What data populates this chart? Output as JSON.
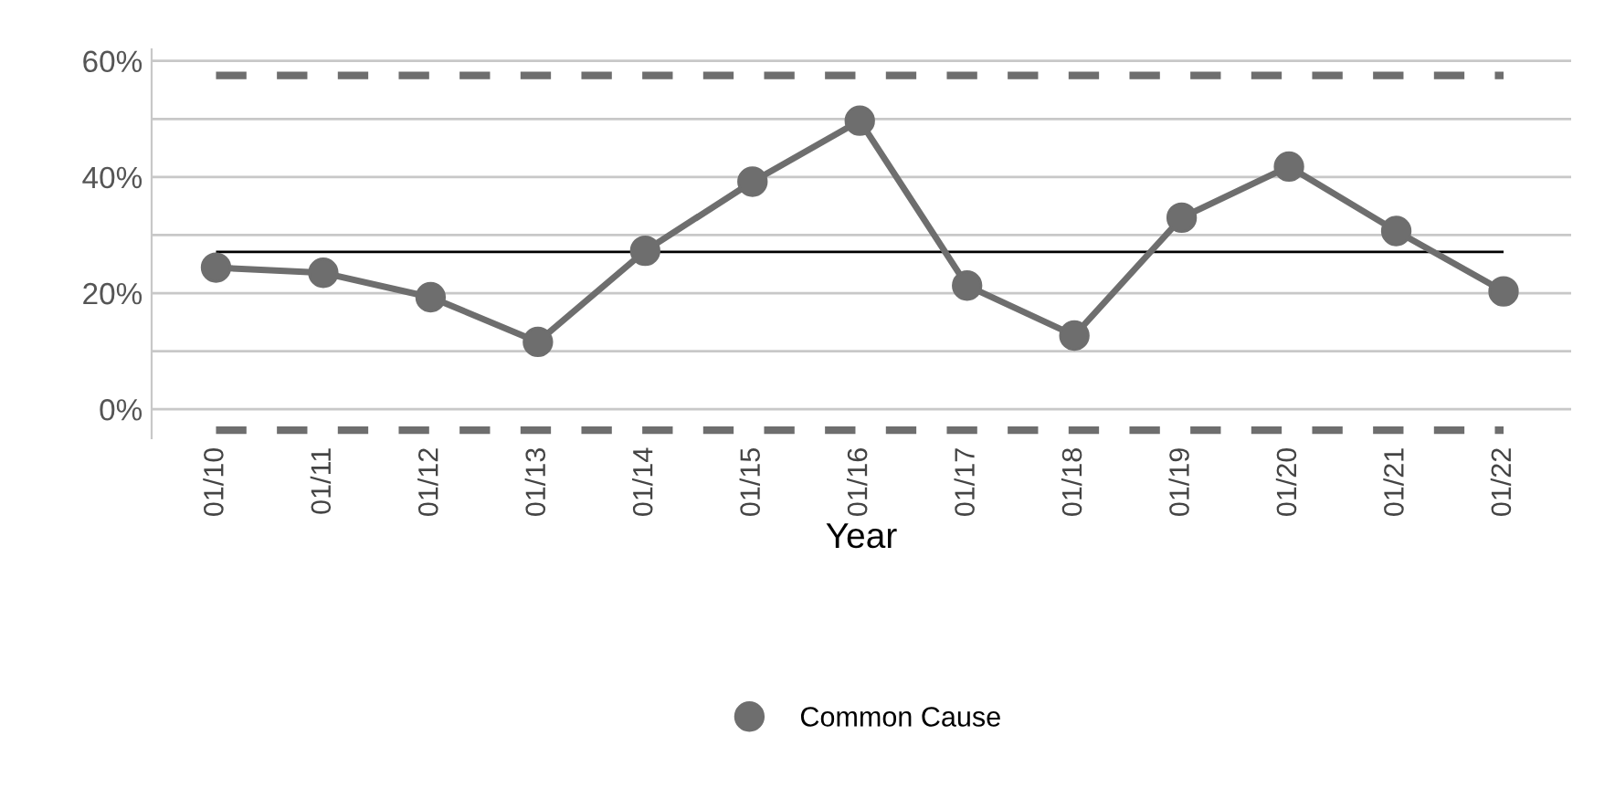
{
  "chart_data": {
    "type": "line",
    "xlabel": "Year",
    "categories": [
      "01/10",
      "01/11",
      "01/12",
      "01/13",
      "01/14",
      "01/15",
      "01/16",
      "01/17",
      "01/18",
      "01/19",
      "01/20",
      "01/21",
      "01/22"
    ],
    "series": [
      {
        "name": "Common Cause",
        "color": "#6e6e6e",
        "values": [
          24.4,
          23.5,
          19.3,
          11.6,
          27.3,
          39.2,
          49.7,
          21.3,
          12.7,
          33.0,
          41.8,
          30.7,
          20.3
        ]
      }
    ],
    "ylim": [
      -5,
      62
    ],
    "yticks": [
      {
        "value": 0,
        "label": "0%"
      },
      {
        "value": 10,
        "label": null
      },
      {
        "value": 20,
        "label": "20%"
      },
      {
        "value": 30,
        "label": null
      },
      {
        "value": 40,
        "label": "40%"
      },
      {
        "value": 50,
        "label": null
      },
      {
        "value": 60,
        "label": "60%"
      }
    ],
    "ref_lines": [
      {
        "axis": "y",
        "value": 57.5,
        "color": "#6e6e6e",
        "line_style": "dashed"
      },
      {
        "axis": "y",
        "value": 27.1,
        "color": "#000000",
        "line_style": "solid"
      },
      {
        "axis": "y",
        "value": -3.6,
        "color": "#6e6e6e",
        "line_style": "dashed"
      }
    ],
    "grid": "y",
    "legend": "bottom",
    "marker": "circle",
    "line_style": "solid"
  }
}
